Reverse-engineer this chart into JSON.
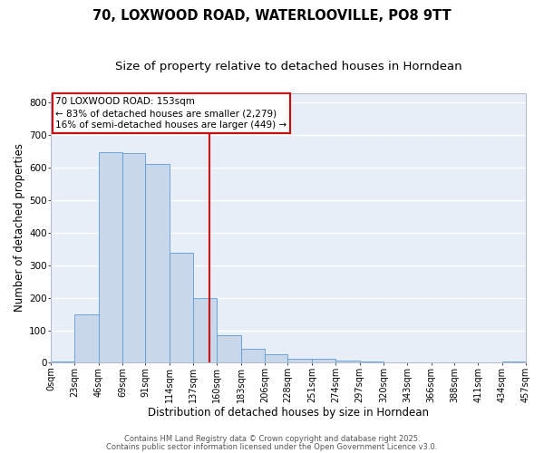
{
  "title": "70, LOXWOOD ROAD, WATERLOOVILLE, PO8 9TT",
  "subtitle": "Size of property relative to detached houses in Horndean",
  "xlabel": "Distribution of detached houses by size in Horndean",
  "ylabel": "Number of detached properties",
  "bar_color": "#c8d8ea",
  "bar_edge_color": "#5b9bd5",
  "background_color": "#e8eef8",
  "grid_color": "#ffffff",
  "fig_bg_color": "#ffffff",
  "bin_edges": [
    0,
    23,
    46,
    69,
    91,
    114,
    137,
    160,
    183,
    206,
    228,
    251,
    274,
    297,
    320,
    343,
    366,
    388,
    411,
    434,
    457
  ],
  "bar_heights": [
    5,
    148,
    648,
    645,
    611,
    338,
    199,
    84,
    42,
    27,
    12,
    12,
    6,
    3,
    0,
    0,
    0,
    0,
    0,
    3
  ],
  "tick_labels": [
    "0sqm",
    "23sqm",
    "46sqm",
    "69sqm",
    "91sqm",
    "114sqm",
    "137sqm",
    "160sqm",
    "183sqm",
    "206sqm",
    "228sqm",
    "251sqm",
    "274sqm",
    "297sqm",
    "320sqm",
    "343sqm",
    "366sqm",
    "388sqm",
    "411sqm",
    "434sqm",
    "457sqm"
  ],
  "vline_x": 153,
  "vline_color": "#cc0000",
  "annotation_lines": [
    "70 LOXWOOD ROAD: 153sqm",
    "← 83% of detached houses are smaller (2,279)",
    "16% of semi-detached houses are larger (449) →"
  ],
  "ylim": [
    0,
    830
  ],
  "footer_line1": "Contains HM Land Registry data © Crown copyright and database right 2025.",
  "footer_line2": "Contains public sector information licensed under the Open Government Licence v3.0.",
  "title_fontsize": 10.5,
  "subtitle_fontsize": 9.5,
  "axis_label_fontsize": 8.5,
  "tick_fontsize": 7,
  "annotation_fontsize": 7.5,
  "footer_fontsize": 6
}
